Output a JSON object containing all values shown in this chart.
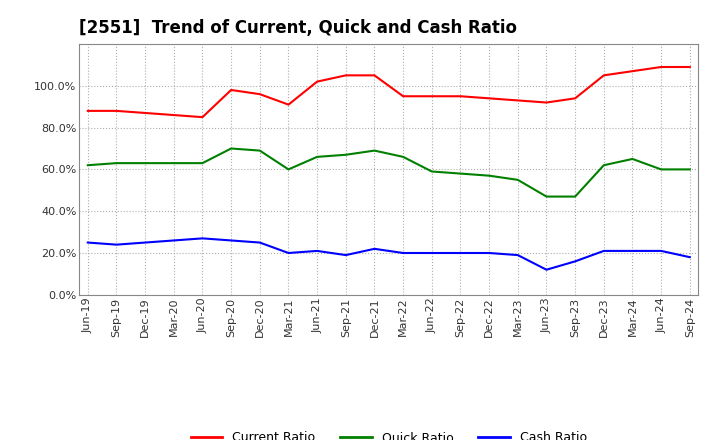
{
  "title": "[2551]  Trend of Current, Quick and Cash Ratio",
  "x_labels": [
    "Jun-19",
    "Sep-19",
    "Dec-19",
    "Mar-20",
    "Jun-20",
    "Sep-20",
    "Dec-20",
    "Mar-21",
    "Jun-21",
    "Sep-21",
    "Dec-21",
    "Mar-22",
    "Jun-22",
    "Sep-22",
    "Dec-22",
    "Mar-23",
    "Jun-23",
    "Sep-23",
    "Dec-23",
    "Mar-24",
    "Jun-24",
    "Sep-24"
  ],
  "current_ratio": [
    88,
    88,
    87,
    86,
    85,
    98,
    96,
    91,
    102,
    105,
    105,
    95,
    95,
    95,
    94,
    93,
    92,
    94,
    105,
    107,
    109,
    109
  ],
  "quick_ratio": [
    62,
    63,
    63,
    63,
    63,
    70,
    69,
    60,
    66,
    67,
    69,
    66,
    59,
    58,
    57,
    55,
    47,
    47,
    62,
    65,
    60,
    60
  ],
  "cash_ratio": [
    25,
    24,
    25,
    26,
    27,
    26,
    25,
    20,
    21,
    19,
    22,
    20,
    20,
    20,
    20,
    19,
    12,
    16,
    21,
    21,
    21,
    18
  ],
  "current_color": "#FF0000",
  "quick_color": "#008000",
  "cash_color": "#0000FF",
  "ylim": [
    0,
    120
  ],
  "yticks": [
    0,
    20,
    40,
    60,
    80,
    100
  ],
  "background_color": "#FFFFFF",
  "grid_color": "#999999",
  "title_fontsize": 12,
  "tick_fontsize": 8,
  "legend_fontsize": 9
}
